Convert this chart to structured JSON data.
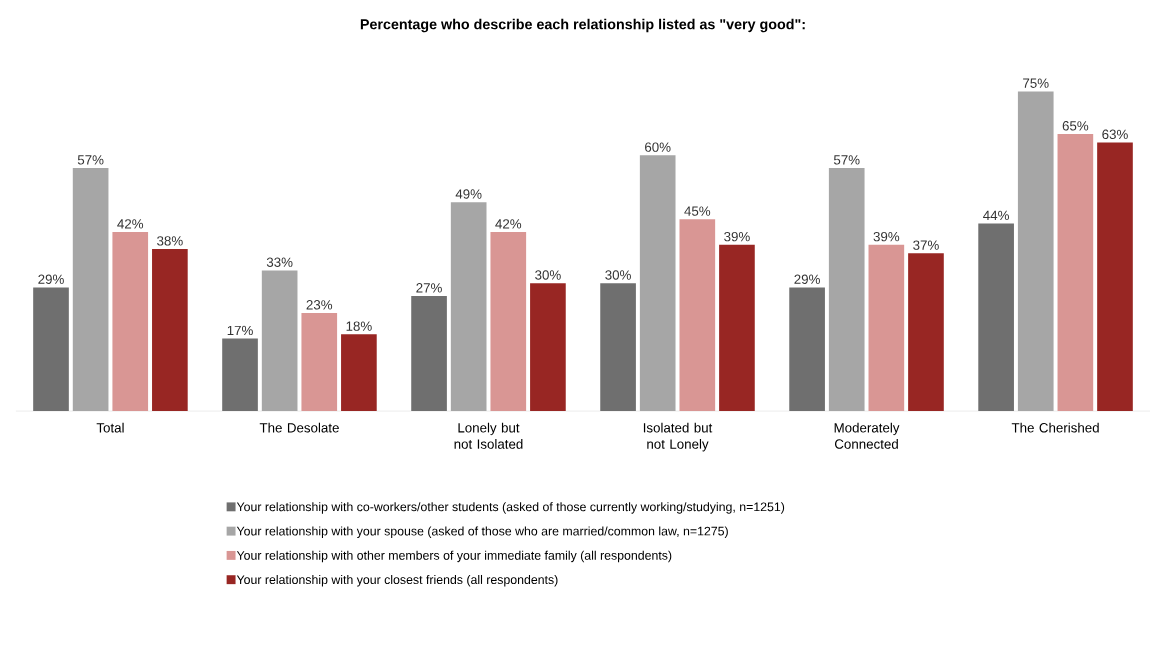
{
  "chart_data": {
    "type": "bar",
    "title": "Percentage who describe each relationship listed as \"very good\":",
    "categories": [
      "Total",
      "The Desolate",
      "Lonely but not Isolated",
      "Isolated but not Lonely",
      "Moderately Connected",
      "The Cherished"
    ],
    "legend": "bottom",
    "series": [
      {
        "name": "Your relationship with co-workers/other students (asked of those currently working/studying, n=1251)",
        "color": "#6f6f6f",
        "values": [
          29,
          17,
          27,
          30,
          29,
          44
        ],
        "value_labels": [
          "29%",
          "17%",
          "27%",
          "30%",
          "29%",
          "44%"
        ]
      },
      {
        "name": "Your relationship with your spouse (asked of those who are married/common law, n=1275)",
        "color": "#a6a6a6",
        "values": [
          57,
          33,
          49,
          60,
          57,
          75
        ],
        "value_labels": [
          "57%",
          "33%",
          "49%",
          "60%",
          "57%",
          "75%"
        ]
      },
      {
        "name": "Your relationship with other members of your immediate family (all respondents)",
        "color": "#d99694",
        "values": [
          42,
          23,
          42,
          45,
          39,
          65
        ],
        "value_labels": [
          "42%",
          "23%",
          "42%",
          "45%",
          "39%",
          "65%"
        ]
      },
      {
        "name": "Your relationship with your closest friends (all respondents)",
        "color": "#982623",
        "values": [
          38,
          18,
          30,
          39,
          37,
          63
        ],
        "value_labels": [
          "38%",
          "18%",
          "30%",
          "39%",
          "37%",
          "63%"
        ]
      }
    ]
  }
}
